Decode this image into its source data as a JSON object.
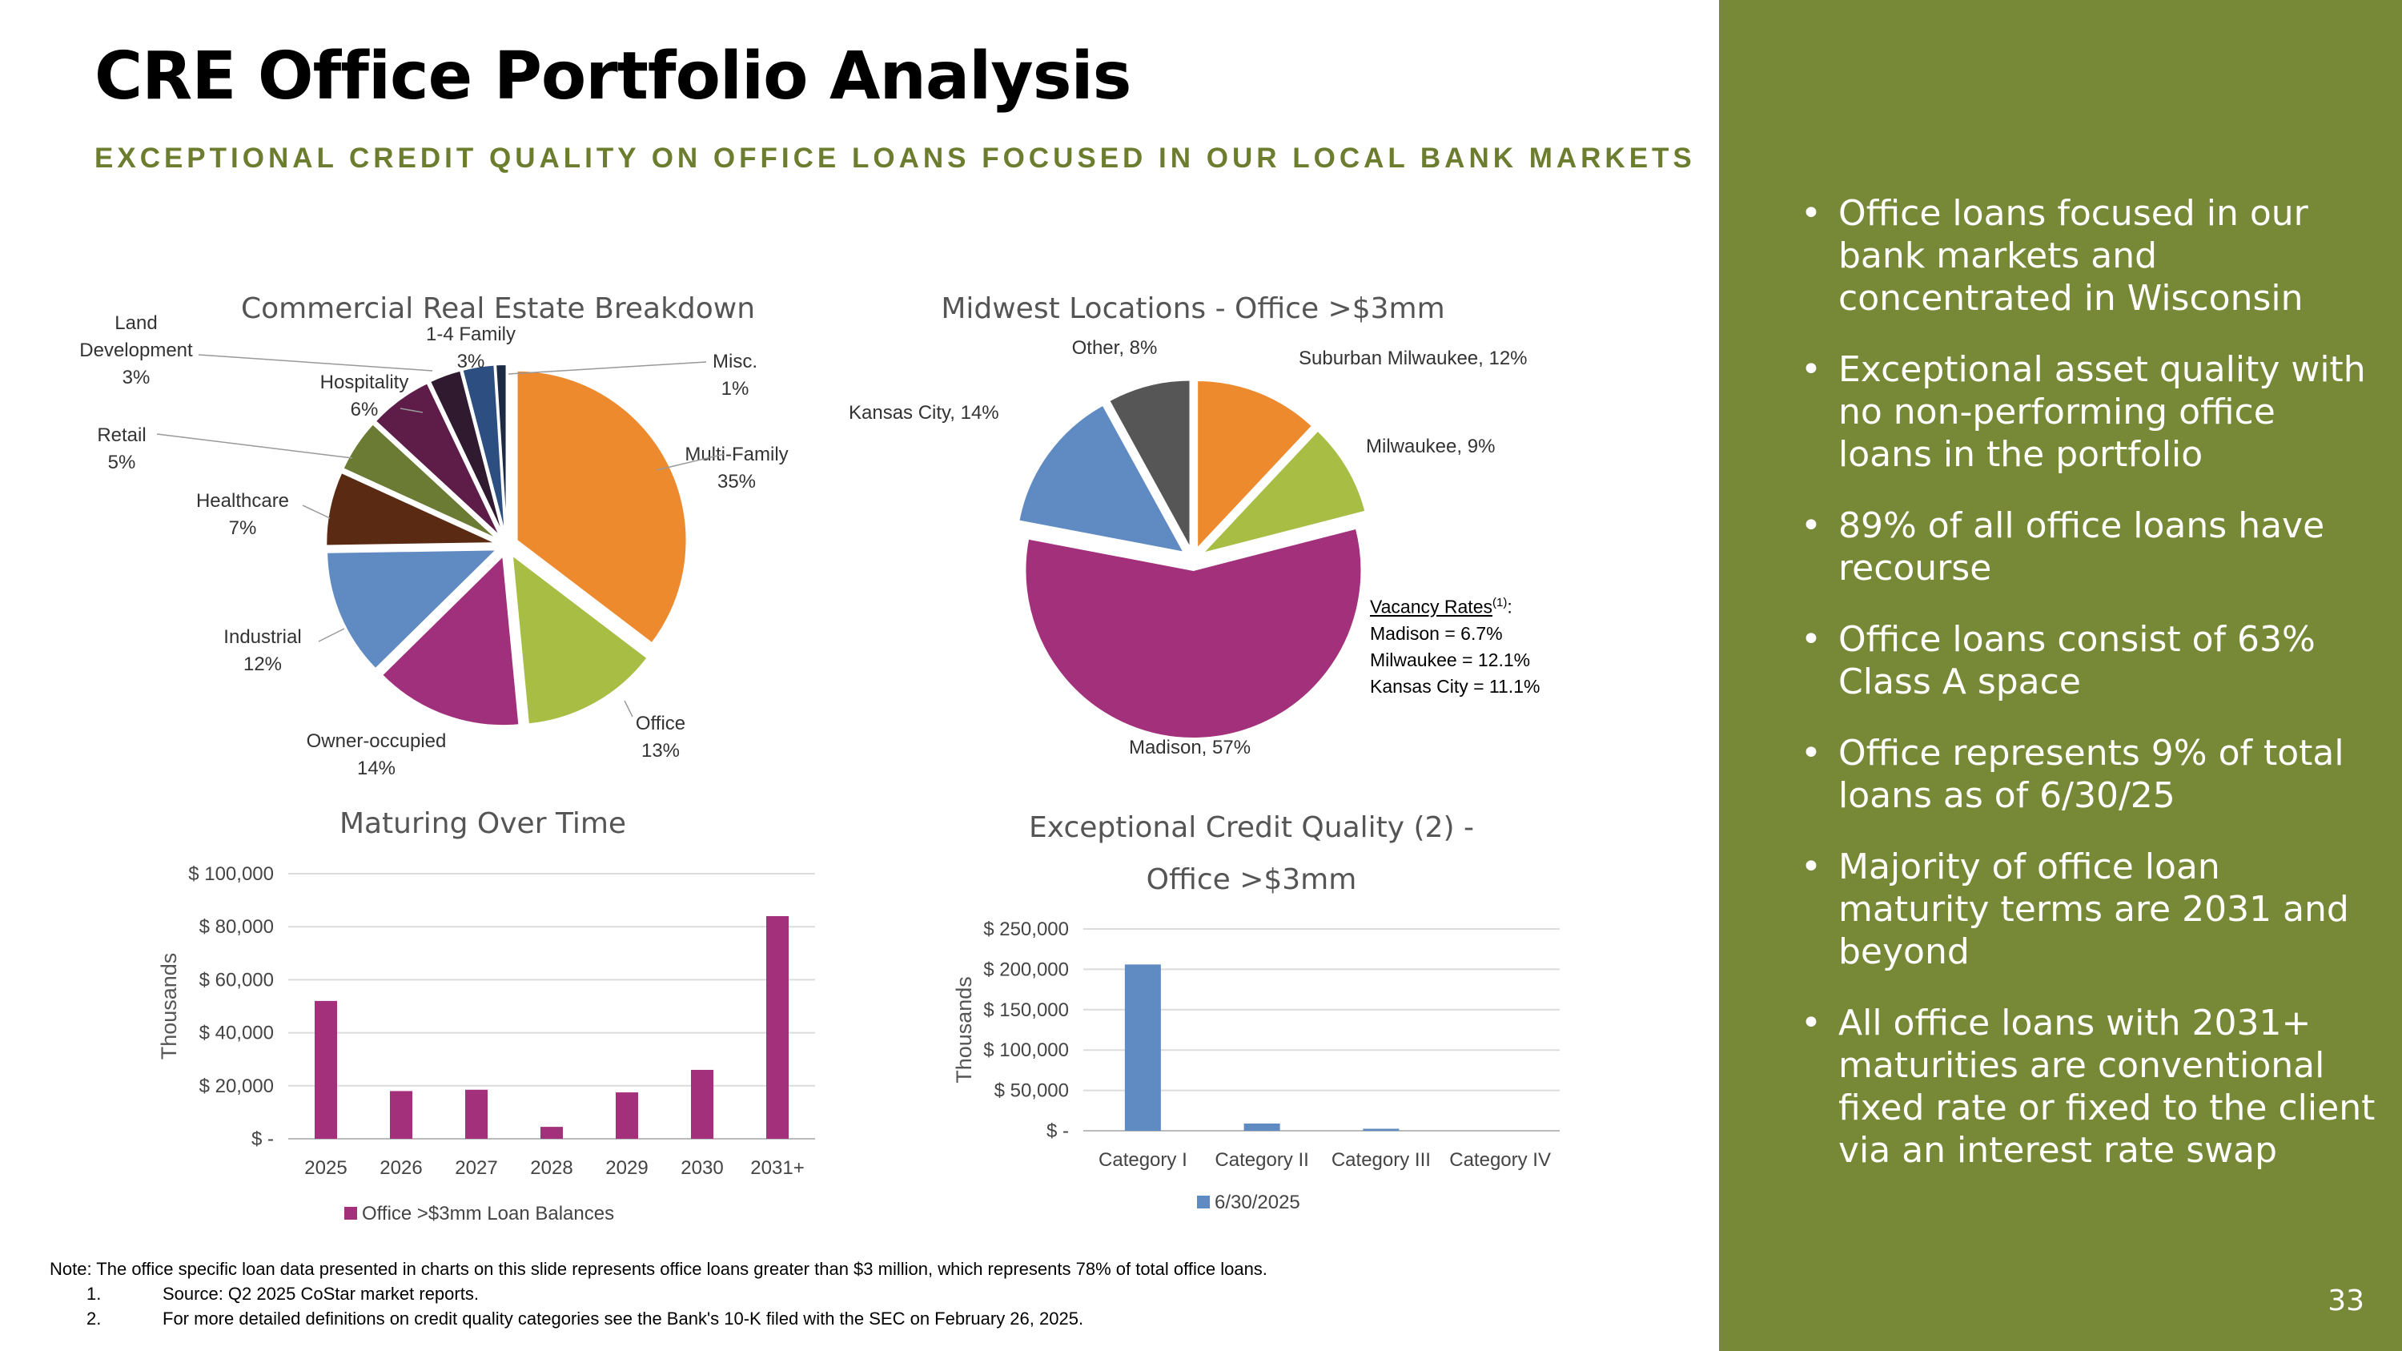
{
  "header": {
    "title": "CRE Office Portfolio Analysis",
    "subtitle": "EXCEPTIONAL CREDIT QUALITY ON OFFICE LOANS FOCUSED IN OUR LOCAL BANK MARKETS"
  },
  "sidebar": {
    "bullet_glyph": "•",
    "bullets": [
      "Office loans focused in our bank markets and concentrated in Wisconsin",
      "Exceptional asset quality with no non-performing office loans in the portfolio",
      "89% of all office loans have recourse",
      "Office loans consist of 63% Class A space",
      "Office represents 9% of total loans as of 6/30/25",
      "Majority of office loan maturity terms are 2031 and beyond",
      "All office loans with 2031+ maturities are conventional fixed rate or fixed to the client via an interest rate swap"
    ],
    "page_number": "33"
  },
  "notes": {
    "note": "Note: The office specific loan data presented in charts on this slide represents office loans greater than $3 million, which represents 78% of total office loans.",
    "items": [
      {
        "num": "1.",
        "text": "Source: Q2 2025 CoStar market reports."
      },
      {
        "num": "2.",
        "text": "For more detailed definitions on credit quality categories see the Bank's 10-K filed with the SEC on February 26, 2025."
      }
    ]
  },
  "vacancy": {
    "heading": "Vacancy Rates",
    "heading_sup": "(1)",
    "heading_suffix": ":",
    "lines": [
      "Madison = 6.7%",
      "Milwaukee = 12.1%",
      "Kansas City = 11.1%"
    ]
  },
  "chart_data": [
    {
      "type": "pie",
      "title": "Commercial Real Estate Breakdown",
      "slices": [
        {
          "name": "Multi-Family",
          "value": 35,
          "label": [
            "Multi-Family",
            "35%"
          ],
          "color": "#ee8a2e"
        },
        {
          "name": "Office",
          "value": 13,
          "label": [
            "Office",
            "13%"
          ],
          "color": "#a8bd44"
        },
        {
          "name": "Owner-occupied",
          "value": 14,
          "label": [
            "Owner-occupied",
            "14%"
          ],
          "color": "#a02f7c"
        },
        {
          "name": "Industrial",
          "value": 12,
          "label": [
            "Industrial",
            "12%"
          ],
          "color": "#5f8bc2"
        },
        {
          "name": "Healthcare",
          "value": 7,
          "label": [
            "Healthcare",
            "7%"
          ],
          "color": "#5a2a13"
        },
        {
          "name": "Retail",
          "value": 5,
          "label": [
            "Retail",
            "5%"
          ],
          "color": "#6b7b34"
        },
        {
          "name": "Hospitality",
          "value": 6,
          "label": [
            "Hospitality",
            "6%"
          ],
          "color": "#5e1d48"
        },
        {
          "name": "Land Development",
          "value": 3,
          "label": [
            "Land",
            "Development",
            "3%"
          ],
          "color": "#2f1a30"
        },
        {
          "name": "1-4 Family",
          "value": 3,
          "label": [
            "1-4 Family",
            "3%"
          ],
          "color": "#2c4e80"
        },
        {
          "name": "Misc.",
          "value": 1,
          "label": [
            "Misc.",
            "1%"
          ],
          "color": "#1c2a44"
        }
      ]
    },
    {
      "type": "pie",
      "title": "Midwest Locations - Office >$3mm",
      "slices": [
        {
          "name": "Suburban Milwaukee",
          "value": 12,
          "label": "Suburban Milwaukee, 12%",
          "color": "#ee8a2e"
        },
        {
          "name": "Milwaukee",
          "value": 9,
          "label": "Milwaukee, 9%",
          "color": "#a8bd44"
        },
        {
          "name": "Madison",
          "value": 57,
          "label": "Madison, 57%",
          "color": "#a2307b"
        },
        {
          "name": "Kansas City",
          "value": 14,
          "label": "Kansas City, 14%",
          "color": "#5f8bc2"
        },
        {
          "name": "Other",
          "value": 8,
          "label": "Other, 8%",
          "color": "#565656"
        }
      ]
    },
    {
      "type": "bar",
      "title": "Maturing Over Time",
      "categories": [
        "2025",
        "2026",
        "2027",
        "2028",
        "2029",
        "2030",
        "2031+"
      ],
      "series": [
        {
          "name": "Office >$3mm Loan Balances",
          "values": [
            52000,
            18000,
            18500,
            4500,
            17500,
            26000,
            84000
          ],
          "color": "#a2307b"
        }
      ],
      "ylim": [
        0,
        100000
      ],
      "yticks": [
        0,
        20000,
        40000,
        60000,
        80000,
        100000
      ],
      "ytick_labels": [
        "$ -",
        "$ 20,000",
        "$ 40,000",
        "$ 60,000",
        "$ 80,000",
        "$ 100,000"
      ],
      "ylabel": "Thousands",
      "legend": "bottom"
    },
    {
      "type": "bar",
      "title": "Exceptional Credit Quality (2) - Office >$3mm",
      "title_lines": [
        "Exceptional Credit Quality (2) -",
        "Office >$3mm"
      ],
      "categories": [
        "Category I",
        "Category II",
        "Category III",
        "Category IV"
      ],
      "series": [
        {
          "name": "6/30/2025",
          "values": [
            206000,
            9000,
            2500,
            0
          ],
          "color": "#5f8bc2"
        }
      ],
      "ylim": [
        0,
        250000
      ],
      "yticks": [
        0,
        50000,
        100000,
        150000,
        200000,
        250000
      ],
      "ytick_labels": [
        "$ -",
        "$ 50,000",
        "$ 100,000",
        "$ 150,000",
        "$ 200,000",
        "$ 250,000"
      ],
      "ylabel": "Thousands",
      "legend": "bottom"
    }
  ]
}
